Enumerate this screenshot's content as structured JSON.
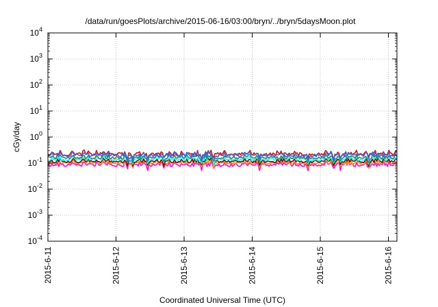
{
  "chart_data": {
    "type": "line",
    "title": "/data/run/goesPlots/archive/2015-06-16/03:00/bryn/../bryn/5daysMoon.plot",
    "xlabel": "Coordinated Universal Time (UTC)",
    "ylabel": "cGy/day",
    "yscale": "log",
    "ylim": [
      0.0001,
      10000
    ],
    "xlim": [
      "2015-06-11T00:00",
      "2015-06-16T03:00"
    ],
    "grid": true,
    "xticks": [
      "2015-6-11",
      "2015-6-12",
      "2015-6-13",
      "2015-6-14",
      "2015-6-15",
      "2015-6-16"
    ],
    "yticks": [
      {
        "value": 0.0001,
        "base": "10",
        "exp": "-4"
      },
      {
        "value": 0.001,
        "base": "10",
        "exp": "-3"
      },
      {
        "value": 0.01,
        "base": "10",
        "exp": "-2"
      },
      {
        "value": 0.1,
        "base": "10",
        "exp": "-1"
      },
      {
        "value": 1,
        "base": "10",
        "exp": "0"
      },
      {
        "value": 10,
        "base": "10",
        "exp": "1"
      },
      {
        "value": 100,
        "base": "10",
        "exp": "2"
      },
      {
        "value": 1000,
        "base": "10",
        "exp": "3"
      },
      {
        "value": 10000,
        "base": "10",
        "exp": "4"
      }
    ],
    "series": [
      {
        "color": "#ff00ff",
        "level": 0.085,
        "amp": 0.09
      },
      {
        "color": "#ff8c00",
        "level": 0.1,
        "amp": 0.07
      },
      {
        "color": "#8b0000",
        "level": 0.115,
        "amp": 0.07
      },
      {
        "color": "#00ffff",
        "level": 0.14,
        "amp": 0.08
      },
      {
        "color": "#2e8b57",
        "level": 0.16,
        "amp": 0.08
      },
      {
        "color": "#ff0000",
        "level": 0.22,
        "amp": 0.1
      },
      {
        "color": "#1e6fff",
        "level": 0.2,
        "amp": 0.1
      }
    ]
  }
}
